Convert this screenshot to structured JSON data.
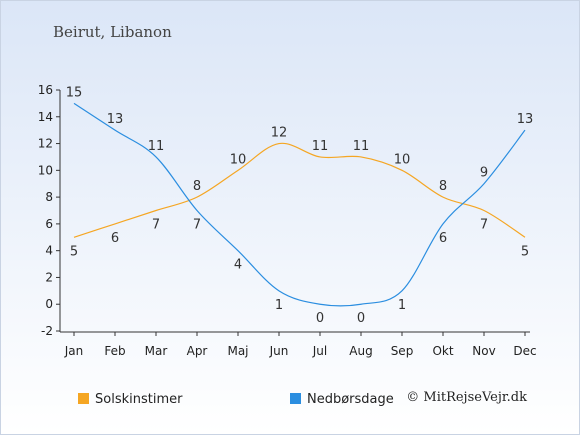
{
  "chart_data": {
    "type": "line",
    "subtitle": "Beirut, Libanon",
    "categories": [
      "Jan",
      "Feb",
      "Mar",
      "Apr",
      "Maj",
      "Jun",
      "Jul",
      "Aug",
      "Sep",
      "Okt",
      "Nov",
      "Dec"
    ],
    "series": [
      {
        "name": "Solskinstimer",
        "values": [
          5,
          6,
          7,
          8,
          10,
          12,
          11,
          11,
          10,
          8,
          7,
          5
        ],
        "color": "#f5a623"
      },
      {
        "name": "Nedbørsdage",
        "values": [
          15,
          13,
          11,
          7,
          4,
          1,
          0,
          0,
          1,
          6,
          9,
          13
        ],
        "color": "#2b8ee0"
      }
    ],
    "ylim": [
      -2,
      16
    ],
    "yticks": [
      -2,
      0,
      2,
      4,
      6,
      8,
      10,
      12,
      14,
      16
    ],
    "grid": false,
    "legend": "bottom",
    "credit": "© MitRejseVejr.dk"
  }
}
